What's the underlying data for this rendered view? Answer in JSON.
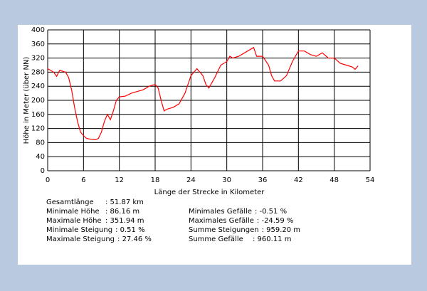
{
  "chart_data": {
    "type": "line",
    "y_label": "Höhe in Meter (über NN)",
    "x_label": "Länge der Strecke in Kilometer",
    "xlim": [
      0,
      54
    ],
    "xticks": [
      0,
      6,
      12,
      18,
      24,
      30,
      36,
      42,
      48,
      54
    ],
    "ylim": [
      0,
      400
    ],
    "yticks": [
      0,
      40,
      80,
      120,
      160,
      200,
      240,
      280,
      320,
      360,
      400
    ],
    "grid": true,
    "x": [
      0,
      1,
      1.5,
      2,
      3,
      3.5,
      4,
      4.5,
      5,
      5.5,
      6,
      6.5,
      7,
      8,
      8.5,
      9,
      9.5,
      10,
      10.5,
      11,
      11.5,
      12,
      13,
      14,
      15,
      16,
      17,
      18,
      18.5,
      19,
      19.5,
      20,
      21,
      22,
      23,
      24,
      25,
      26,
      26.5,
      27,
      28,
      29,
      30,
      30.5,
      31,
      32,
      33,
      34,
      34.5,
      35,
      36,
      37,
      37.5,
      38,
      39,
      40,
      41,
      42,
      43,
      44,
      45,
      46,
      47,
      48,
      49,
      50,
      51,
      51.5,
      52
    ],
    "series": [
      {
        "color": "#ff0000",
        "values": [
          290,
          280,
          268,
          285,
          280,
          265,
          230,
          180,
          140,
          110,
          100,
          92,
          90,
          88,
          92,
          110,
          140,
          160,
          145,
          170,
          200,
          210,
          212,
          220,
          225,
          230,
          240,
          245,
          235,
          200,
          170,
          175,
          180,
          190,
          220,
          270,
          290,
          270,
          245,
          235,
          265,
          300,
          310,
          325,
          320,
          325,
          335,
          345,
          350,
          325,
          325,
          300,
          270,
          255,
          255,
          270,
          310,
          340,
          340,
          330,
          325,
          335,
          320,
          320,
          305,
          300,
          295,
          288,
          298
        ]
      }
    ]
  },
  "stats": {
    "left": [
      {
        "label": "Gesamtlänge",
        "value": ": 51.87  km"
      },
      {
        "label": "Minimale Höhe",
        "value": ": 86.16 m"
      },
      {
        "label": "Maximale Höhe",
        "value": ": 351.94 m"
      },
      {
        "label": "Minimale Steigung",
        "value": ": 0.51 %"
      },
      {
        "label": "Maximale Steigung",
        "value": ": 27.46 %"
      }
    ],
    "right": [
      {
        "label": "Minimales Gefälle",
        "value": ": -0.51 %"
      },
      {
        "label": "Maximales Gefälle",
        "value": ": -24.59 %"
      },
      {
        "label": "Summe Steigungen",
        "value": ": 959.20 m"
      },
      {
        "label": "Summe Gefälle",
        "value": ": 960.11 m"
      }
    ]
  }
}
